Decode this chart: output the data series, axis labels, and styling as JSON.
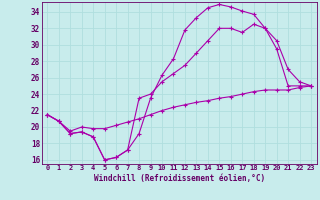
{
  "xlabel": "Windchill (Refroidissement éolien,°C)",
  "background_color": "#c8ecec",
  "grid_color": "#b0dede",
  "line_color": "#aa00aa",
  "spine_color": "#660066",
  "xlim": [
    -0.5,
    23.5
  ],
  "ylim": [
    15.5,
    35.2
  ],
  "yticks": [
    16,
    18,
    20,
    22,
    24,
    26,
    28,
    30,
    32,
    34
  ],
  "xticks": [
    0,
    1,
    2,
    3,
    4,
    5,
    6,
    7,
    8,
    9,
    10,
    11,
    12,
    13,
    14,
    15,
    16,
    17,
    18,
    19,
    20,
    21,
    22,
    23
  ],
  "line1_x": [
    0,
    1,
    2,
    3,
    4,
    5,
    6,
    7,
    8,
    9,
    10,
    11,
    12,
    13,
    14,
    15,
    16,
    17,
    18,
    19,
    20,
    21,
    22,
    23
  ],
  "line1_y": [
    21.5,
    20.7,
    19.2,
    19.4,
    18.8,
    16.0,
    16.3,
    17.2,
    19.2,
    23.5,
    26.3,
    28.3,
    31.8,
    33.3,
    34.5,
    34.9,
    34.6,
    34.1,
    33.7,
    32.0,
    29.5,
    25.0,
    25.0,
    25.0
  ],
  "line2_x": [
    0,
    1,
    2,
    3,
    4,
    5,
    6,
    7,
    8,
    9,
    10,
    11,
    12,
    13,
    14,
    15,
    16,
    17,
    18,
    19,
    20,
    21,
    22,
    23
  ],
  "line2_y": [
    21.5,
    20.7,
    19.2,
    19.4,
    18.8,
    16.0,
    16.3,
    17.2,
    23.5,
    24.0,
    25.5,
    26.5,
    27.5,
    29.0,
    30.5,
    32.0,
    32.0,
    31.5,
    32.5,
    32.0,
    30.5,
    27.0,
    25.5,
    25.0
  ],
  "line3_x": [
    0,
    1,
    2,
    3,
    4,
    5,
    6,
    7,
    8,
    9,
    10,
    11,
    12,
    13,
    14,
    15,
    16,
    17,
    18,
    19,
    20,
    21,
    22,
    23
  ],
  "line3_y": [
    21.5,
    20.7,
    19.5,
    20.0,
    19.8,
    19.8,
    20.2,
    20.6,
    21.0,
    21.5,
    22.0,
    22.4,
    22.7,
    23.0,
    23.2,
    23.5,
    23.7,
    24.0,
    24.3,
    24.5,
    24.5,
    24.5,
    24.8,
    25.0
  ]
}
